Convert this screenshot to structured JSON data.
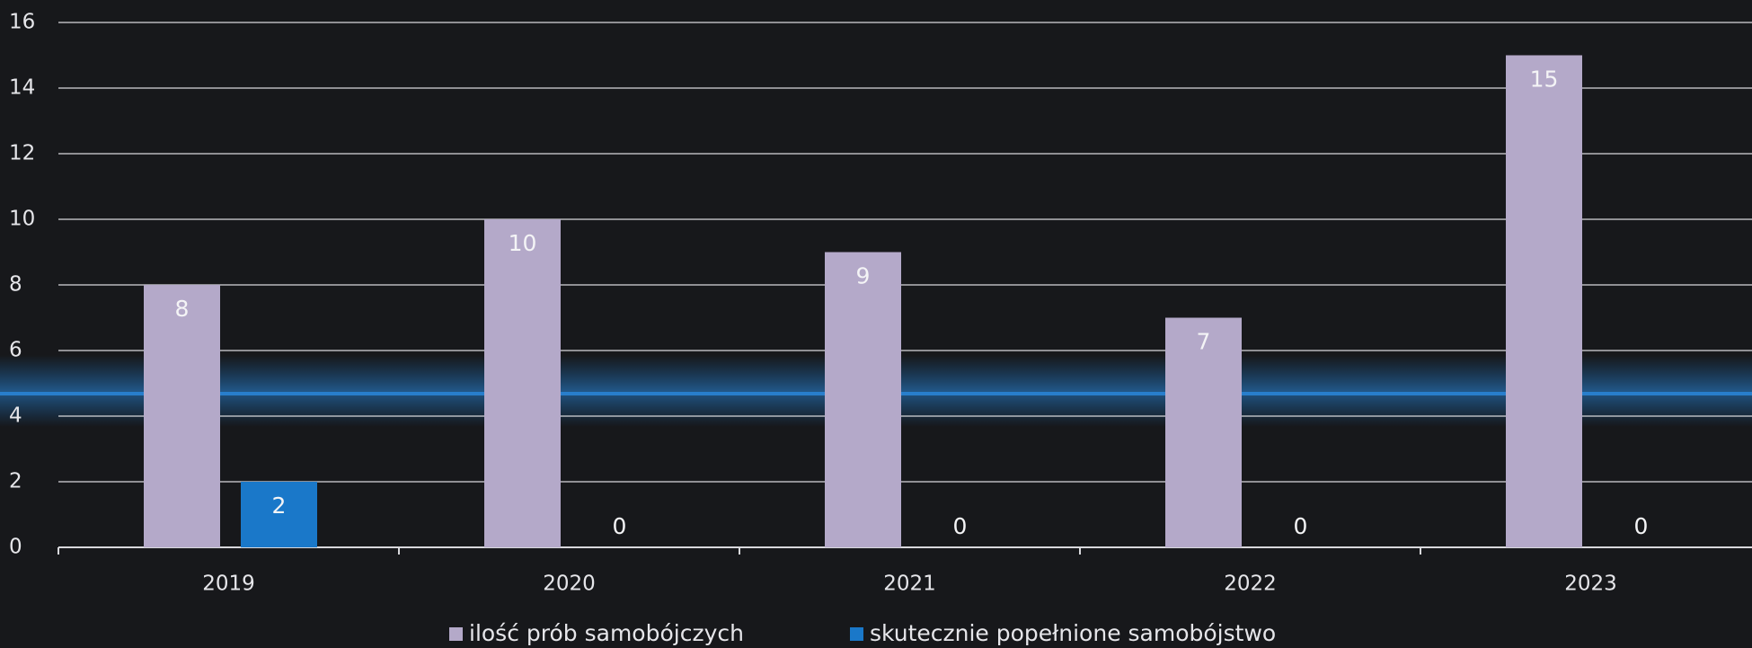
{
  "chart_data": {
    "type": "bar",
    "categories": [
      "2019",
      "2020",
      "2021",
      "2022",
      "2023"
    ],
    "series": [
      {
        "name": "ilość prób samobójczych",
        "color": "#b4a9c9",
        "values": [
          8,
          10,
          9,
          7,
          15
        ]
      },
      {
        "name": "skutecznie popełnione samobójstwo",
        "color": "#1a78c9",
        "values": [
          2,
          0,
          0,
          0,
          0
        ]
      }
    ],
    "ylim": [
      0,
      16
    ],
    "yticks": [
      0,
      2,
      4,
      6,
      8,
      10,
      12,
      14,
      16
    ],
    "grid": true,
    "legend": "bottom"
  }
}
